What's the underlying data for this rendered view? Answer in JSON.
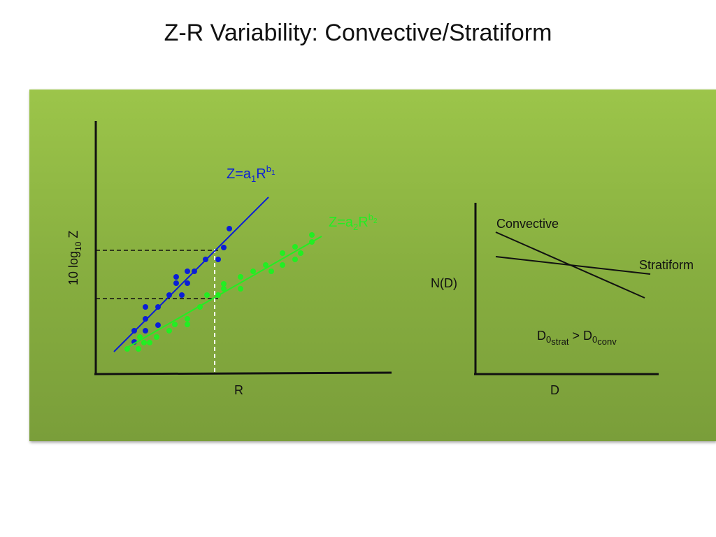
{
  "slide": {
    "title": "Z-R Variability: Convective/Stratiform"
  },
  "left_plot": {
    "y_axis_label": {
      "prefix": "10 log",
      "sub": "10",
      "suffix": " Z"
    },
    "x_axis_label": "R",
    "convective_fit": {
      "base": "Z=a",
      "sub": "1",
      "mid": "R",
      "sup": "b",
      "supsub": "1"
    },
    "stratiform_fit": {
      "base": "Z=a",
      "sub": "2",
      "mid": "R",
      "sup": "b",
      "supsub": "2"
    }
  },
  "right_plot": {
    "y_axis_label": "N(D)",
    "x_axis_label": "D",
    "convective_label": "Convective",
    "stratiform_label": "Stratiform",
    "relation": {
      "a": "D",
      "a_sub": "0",
      "a_subsub": "strat",
      "op": " > ",
      "b": "D",
      "b_sub": "0",
      "b_subsub": "conv"
    }
  },
  "colors": {
    "panel_top": "#9cc54a",
    "panel_bottom": "#7a9e3a",
    "convective": "#0b1fd6",
    "stratiform": "#22ee22",
    "axis": "#111111"
  }
}
